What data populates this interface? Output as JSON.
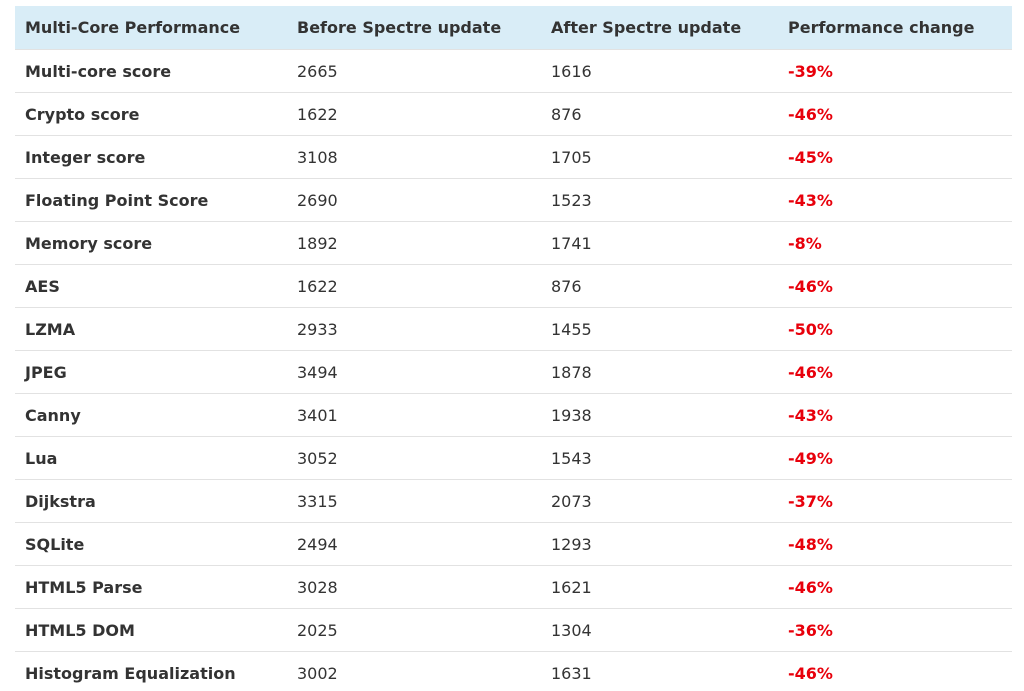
{
  "table": {
    "header": [
      "Multi-Core Performance",
      "Before Spectre update",
      "After Spectre update",
      "Performance change"
    ],
    "rows": [
      [
        "Multi-core score",
        "2665",
        "1616",
        "-39%"
      ],
      [
        "Crypto score",
        "1622",
        "876",
        "-46%"
      ],
      [
        "Integer score",
        "3108",
        "1705",
        "-45%"
      ],
      [
        "Floating Point Score",
        "2690",
        "1523",
        "-43%"
      ],
      [
        "Memory score",
        "1892",
        "1741",
        "-8%"
      ],
      [
        "AES",
        "1622",
        "876",
        "-46%"
      ],
      [
        "LZMA",
        "2933",
        "1455",
        "-50%"
      ],
      [
        "JPEG",
        "3494",
        "1878",
        "-46%"
      ],
      [
        "Canny",
        "3401",
        "1938",
        "-43%"
      ],
      [
        "Lua",
        "3052",
        "1543",
        "-49%"
      ],
      [
        "Dijkstra",
        "3315",
        "2073",
        "-37%"
      ],
      [
        "SQLite",
        "2494",
        "1293",
        "-48%"
      ],
      [
        "HTML5 Parse",
        "3028",
        "1621",
        "-46%"
      ],
      [
        "HTML5 DOM",
        "2025",
        "1304",
        "-36%"
      ],
      [
        "Histogram Equalization",
        "3002",
        "1631",
        "-46%"
      ]
    ]
  }
}
